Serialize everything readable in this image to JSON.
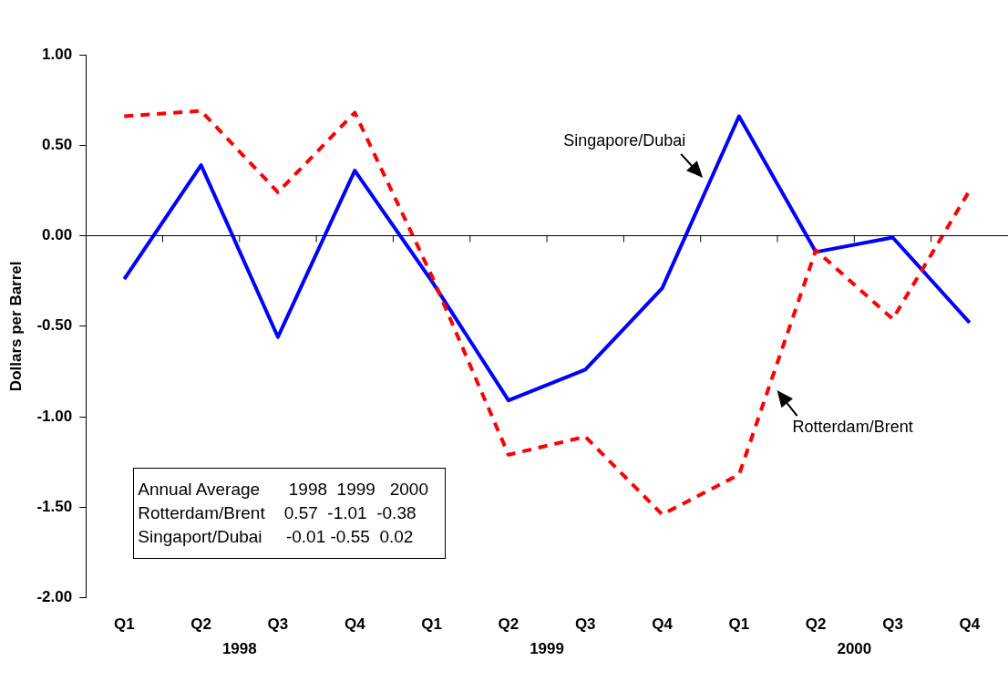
{
  "chart_data": {
    "type": "line",
    "ylabel": "Dollars per Barrel",
    "categories": [
      "Q1",
      "Q2",
      "Q3",
      "Q4",
      "Q1",
      "Q2",
      "Q3",
      "Q4",
      "Q1",
      "Q2",
      "Q3",
      "Q4"
    ],
    "series": [
      {
        "name": "Rotterdam/Brent",
        "color": "#ff0000",
        "line_style": "dashed",
        "values": [
          0.66,
          0.69,
          0.24,
          0.68,
          -0.22,
          -1.21,
          -1.11,
          -1.54,
          -1.32,
          -0.08,
          -0.46,
          0.25
        ]
      },
      {
        "name": "Singapore/Dubai",
        "color": "#0000ff",
        "line_style": "solid",
        "values": [
          -0.24,
          0.39,
          -0.56,
          0.36,
          -0.25,
          -0.91,
          -0.74,
          -0.29,
          0.66,
          -0.09,
          -0.01,
          -0.48
        ]
      }
    ],
    "ylim": [
      -2,
      1
    ],
    "yticks": [
      {
        "value": -2,
        "label": "-2.00"
      },
      {
        "value": -1.5,
        "label": "-1.50"
      },
      {
        "value": -1,
        "label": "-1.00"
      },
      {
        "value": -0.5,
        "label": "-0.50"
      },
      {
        "value": 0,
        "label": "0.00"
      },
      {
        "value": 0.5,
        "label": "0.50"
      },
      {
        "value": 1,
        "label": "1.00"
      }
    ],
    "marker": "none",
    "legend": false,
    "annotations": [
      "1998",
      "1999",
      "2000",
      "Annual Average      1998  1999   2000",
      "Rotterdam/Brent    0.57  -1.01  -0.38",
      "Singaport/Dubai     -0.01 -0.55  0.02"
    ]
  }
}
